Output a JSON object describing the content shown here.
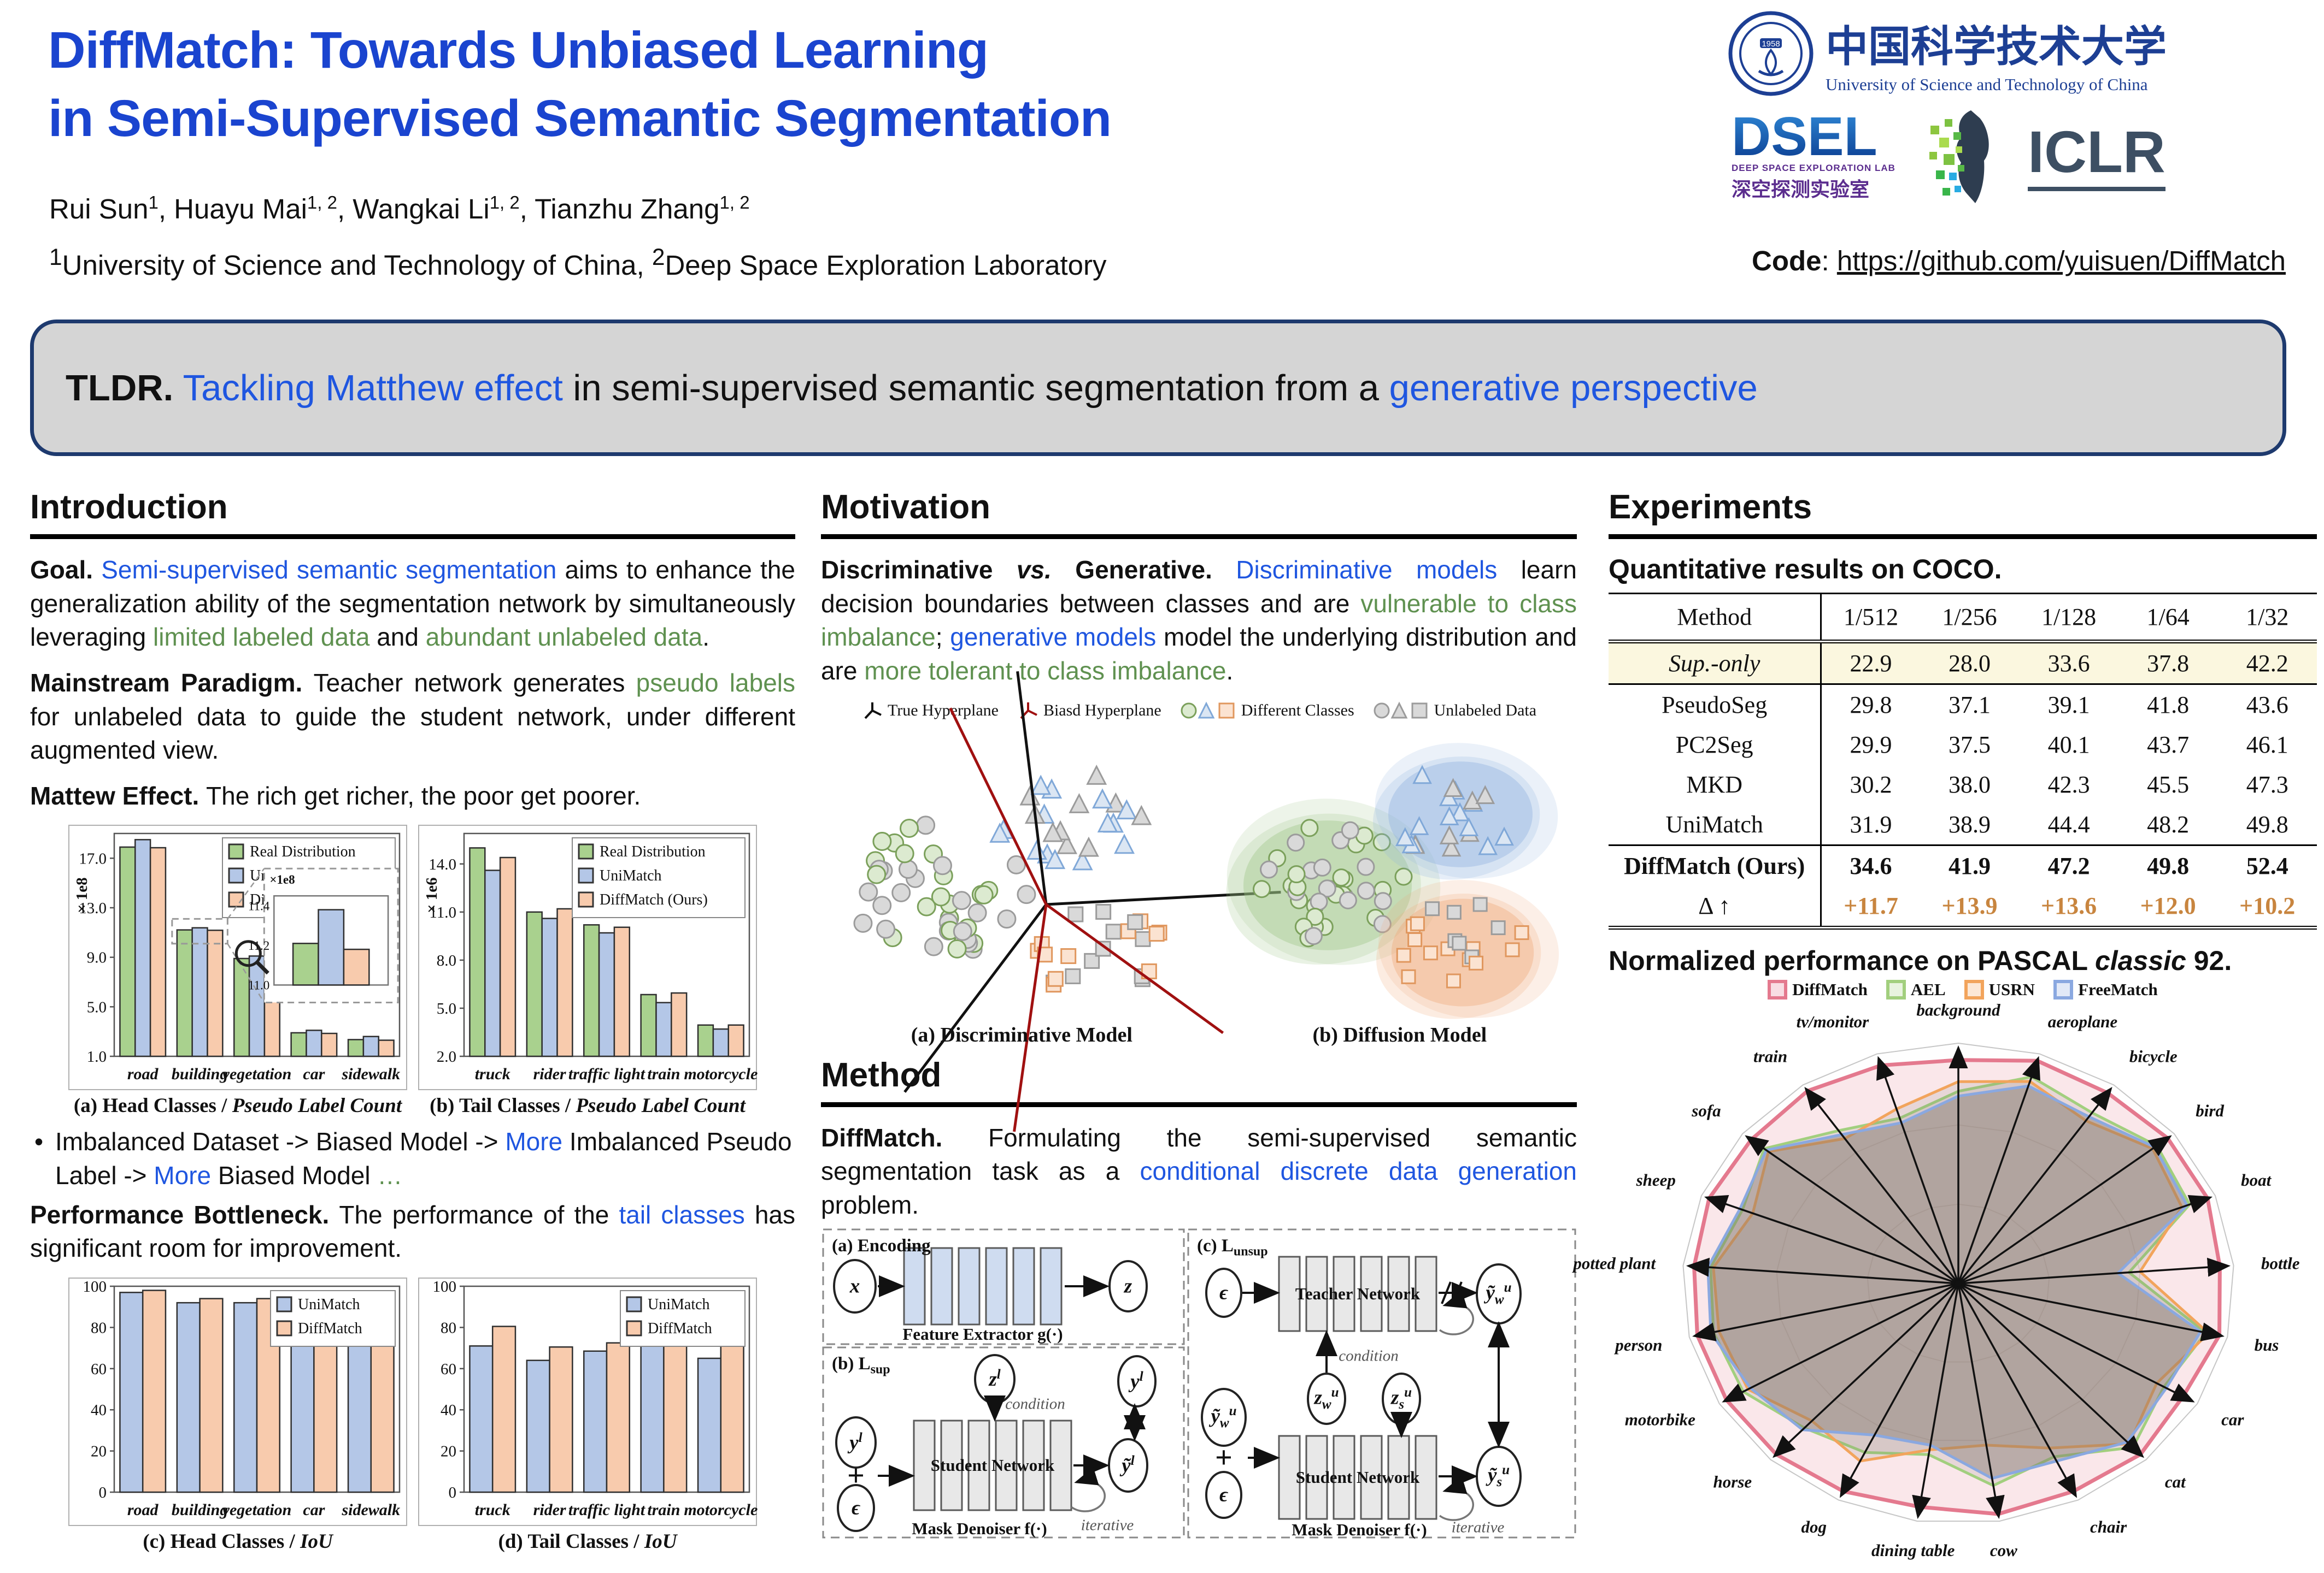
{
  "header": {
    "title_line1": "DiffMatch: Towards Unbiased Learning",
    "title_line2": "in Semi-Supervised Semantic Segmentation",
    "authors": "Rui Sun^{1}, Huayu Mai^{1, 2}, Wangkai Li^{1, 2}, Tianzhu Zhang^{1, 2}",
    "affiliations": "^{1}University of Science and Technology of China, ^{2}Deep Space Exploration Laboratory",
    "code_label": "Code",
    "code_url": "https://github.com/yuisuen/DiffMatch",
    "logos": {
      "ustc_cn": "中国科学技术大学",
      "ustc_en": "University of Science and Technology of China",
      "dsel": "DSEL",
      "dsel_sub": "DEEP SPACE EXPLORATION LAB",
      "dsel_cn": "深空探测实验室",
      "iclr": "ICLR"
    }
  },
  "tldr": {
    "segments": [
      {
        "t": "TLDR.",
        "b": 1
      },
      {
        "t": " Tackling Matthew effect",
        "c": "blue"
      },
      {
        "t": " in semi-supervised semantic segmentation from a "
      },
      {
        "t": "generative perspective",
        "c": "blue"
      }
    ]
  },
  "sections": {
    "intro": "Introduction",
    "motivation": "Motivation",
    "method": "Method",
    "experiments": "Experiments"
  },
  "intro": {
    "goal": [
      {
        "t": "Goal. ",
        "b": 1
      },
      {
        "t": "Semi-supervised semantic segmentation",
        "c": "blue"
      },
      {
        "t": " aims to enhance the generalization ability of the segmentation network by simultaneously leveraging "
      },
      {
        "t": "limited labeled data",
        "c": "green"
      },
      {
        "t": " and "
      },
      {
        "t": "abundant unlabeled data",
        "c": "green"
      },
      {
        "t": "."
      }
    ],
    "paradigm": [
      {
        "t": "Mainstream Paradigm. ",
        "b": 1
      },
      {
        "t": "Teacher network generates "
      },
      {
        "t": "pseudo labels",
        "c": "green"
      },
      {
        "t": " for unlabeled data to guide the student network, under different  augmented view."
      }
    ],
    "matthew": [
      {
        "t": "Mattew Effect. ",
        "b": 1
      },
      {
        "t": "The rich get richer, the poor get poorer."
      }
    ],
    "bullet": [
      {
        "t": "Imbalanced Dataset -> Biased Model -> "
      },
      {
        "t": "More",
        "c": "blue"
      },
      {
        "t": " Imbalanced Pseudo Label -> "
      },
      {
        "t": "More",
        "c": "blue"
      },
      {
        "t": " Biased Model "
      },
      {
        "t": "…",
        "c": "green"
      }
    ],
    "bottleneck": [
      {
        "t": "Performance Bottleneck. ",
        "b": 1
      },
      {
        "t": "The performance of the "
      },
      {
        "t": "tail classes",
        "c": "blue"
      },
      {
        "t": " has significant room for improvement."
      }
    ]
  },
  "motivation": {
    "paragraph": [
      {
        "t": "Discriminative ",
        "b": 1
      },
      {
        "t": "vs.",
        "b": 1,
        "i": 1
      },
      {
        "t": " Generative. ",
        "b": 1
      },
      {
        "t": "Discriminative models",
        "c": "blue"
      },
      {
        "t": " learn decision boundaries between classes and are "
      },
      {
        "t": "vulnerable to class imbalance",
        "c": "green"
      },
      {
        "t": "; "
      },
      {
        "t": "generative models",
        "c": "blue"
      },
      {
        "t": " model the underlying distribution and are "
      },
      {
        "t": "more tolerant to class imbalance",
        "c": "green"
      },
      {
        "t": "."
      }
    ]
  },
  "motiv_fig": {
    "legend": {
      "true_hp": "True Hyperplane",
      "biased_hp": "Biasd Hyperplane",
      "classes": "Different Classes",
      "unlabeled": "Unlabeled Data"
    },
    "captions": {
      "a": "(a) Discriminative Model",
      "b": "(b) Diffusion Model"
    }
  },
  "method": {
    "paragraph": [
      {
        "t": "DiffMatch. ",
        "b": 1
      },
      {
        "t": "Formulating the semi-supervised semantic segmentation task as a "
      },
      {
        "t": "conditional discrete data generation",
        "c": "blue"
      },
      {
        "t": " problem."
      }
    ]
  },
  "method_fig": {
    "labels": {
      "box_a": "(a) Encoding",
      "box_b": "(b) L_{sup}",
      "box_c": "(c) L_{unsup}",
      "x": "x",
      "z": "z",
      "zl": "z^{l}",
      "yl": "y^{l}",
      "ytl": "ỹ^{l}",
      "eps": "ϵ",
      "ywu": "ỹ_{w}^{u}",
      "zwu": "z_{w}^{u}",
      "zsu": "z_{s}^{u}",
      "ysu": "ỹ_{s}^{u}",
      "plus": "+",
      "feat": "Feature Extractor g(·)",
      "student": "Student Network",
      "teacher": "Teacher Network",
      "mask": "Mask Denoiser f(·)",
      "condition": "condition",
      "iterative": "iterative"
    }
  },
  "experiments": {
    "coco_title": "Quantitative results on COCO.",
    "coco_table": {
      "columns": [
        "Method",
        "1/512",
        "1/256",
        "1/128",
        "1/64",
        "1/32"
      ],
      "rows": [
        {
          "method": "Sup.-only",
          "italic": true,
          "highlight": true,
          "sep": true,
          "values": [
            "22.9",
            "28.0",
            "33.6",
            "37.8",
            "42.2"
          ]
        },
        {
          "method": "PseudoSeg",
          "values": [
            "29.8",
            "37.1",
            "39.1",
            "41.8",
            "43.6"
          ]
        },
        {
          "method": "PC2Seg",
          "values": [
            "29.9",
            "37.5",
            "40.1",
            "43.7",
            "46.1"
          ]
        },
        {
          "method": "MKD",
          "values": [
            "30.2",
            "38.0",
            "42.3",
            "45.5",
            "47.3"
          ]
        },
        {
          "method": "UniMatch",
          "sep": true,
          "values": [
            "31.9",
            "38.9",
            "44.4",
            "48.2",
            "49.8"
          ]
        },
        {
          "method": "DiffMatch (Ours)",
          "bold": true,
          "values": [
            "34.6",
            "41.9",
            "47.2",
            "49.8",
            "52.4"
          ]
        },
        {
          "method": "Δ ↑",
          "delta": true,
          "values": [
            "+11.7",
            "+13.9",
            "+13.6",
            "+12.0",
            "+10.2"
          ]
        }
      ]
    }
  },
  "chart_data": [
    {
      "id": "head-pseudo",
      "type": "bar",
      "caption": [
        {
          "t": "(a) Head Classes / ",
          "b": 1
        },
        {
          "t": "Pseudo Label Count",
          "b": 1,
          "i": 1
        }
      ],
      "ylabel": "× 1e8",
      "yticks": [
        "1.0",
        "5.0",
        "9.0",
        "13.0",
        "17.0"
      ],
      "ylim": [
        1.0,
        19.0
      ],
      "categories": [
        "road",
        "building",
        "vegetation",
        "car",
        "sidewalk"
      ],
      "series": [
        {
          "name": "Real Distribution",
          "color": "#a9d18e",
          "values": [
            17.9,
            11.21,
            8.9,
            2.9,
            2.35
          ]
        },
        {
          "name": "UniMacth",
          "color": "#b4c7e7",
          "values": [
            18.5,
            11.38,
            9.1,
            3.1,
            2.6
          ]
        },
        {
          "name": "DiffMatch (Ours)",
          "color": "#f8cbad",
          "values": [
            17.85,
            11.18,
            8.85,
            2.85,
            2.3
          ]
        }
      ],
      "inset": {
        "label": "×1e8",
        "yticks": [
          "11.0",
          "11.2",
          "11.4"
        ],
        "ylim": [
          11.0,
          11.45
        ],
        "category_index": 1
      }
    },
    {
      "id": "tail-pseudo",
      "type": "bar",
      "caption": [
        {
          "t": "(b) Tail Classes / ",
          "b": 1
        },
        {
          "t": "Pseudo Label Count",
          "b": 1,
          "i": 1
        }
      ],
      "ylabel": "× 1e6",
      "yticks": [
        "2.0",
        "5.0",
        "8.0",
        "11.0",
        "14.0"
      ],
      "ylim": [
        2.0,
        15.9
      ],
      "categories": [
        "truck",
        "rider",
        "traffic light",
        "train",
        "motorcycle"
      ],
      "series": [
        {
          "name": "Real Distribution",
          "color": "#a9d18e",
          "values": [
            15.0,
            11.0,
            10.2,
            5.85,
            3.95
          ]
        },
        {
          "name": "UniMatch",
          "color": "#b4c7e7",
          "values": [
            13.6,
            10.6,
            9.7,
            5.35,
            3.7
          ]
        },
        {
          "name": "DiffMatch (Ours)",
          "color": "#f8cbad",
          "values": [
            14.4,
            11.2,
            10.05,
            5.95,
            3.95
          ]
        }
      ]
    },
    {
      "id": "head-iou",
      "type": "bar",
      "caption": [
        {
          "t": "(c) Head Classes / ",
          "b": 1
        },
        {
          "t": "IoU",
          "b": 1,
          "i": 1
        }
      ],
      "ylabel": "",
      "yticks": [
        "0",
        "20",
        "40",
        "60",
        "80",
        "100"
      ],
      "ylim": [
        0,
        100
      ],
      "categories": [
        "road",
        "building",
        "vegetation",
        "car",
        "sidewalk"
      ],
      "series": [
        {
          "name": "UniMatch",
          "color": "#b4c7e7",
          "values": [
            97,
            92,
            92,
            94.5,
            83
          ]
        },
        {
          "name": "DiffMatch",
          "color": "#f8cbad",
          "values": [
            98,
            94,
            94,
            96,
            85.5
          ]
        }
      ]
    },
    {
      "id": "tail-iou",
      "type": "bar",
      "caption": [
        {
          "t": "(d) Tail Classes / ",
          "b": 1
        },
        {
          "t": "IoU",
          "b": 1,
          "i": 1
        }
      ],
      "ylabel": "",
      "yticks": [
        "0",
        "20",
        "40",
        "60",
        "80",
        "100"
      ],
      "ylim": [
        0,
        100
      ],
      "categories": [
        "truck",
        "rider",
        "traffic light",
        "train",
        "motorcycle"
      ],
      "series": [
        {
          "name": "UniMatch",
          "color": "#b4c7e7",
          "values": [
            71,
            64,
            68.5,
            73,
            65
          ]
        },
        {
          "name": "DiffMatch",
          "color": "#f8cbad",
          "values": [
            80.5,
            70.5,
            72.5,
            89,
            74
          ]
        }
      ]
    },
    {
      "id": "pascal-radar",
      "type": "radar",
      "title": [
        {
          "t": "Normalized performance on PASCAL ",
          "b": 1
        },
        {
          "t": "classic",
          "b": 1,
          "i": 1
        },
        {
          "t": " 92.",
          "b": 1
        }
      ],
      "categories": [
        "background",
        "aeroplane",
        "bicycle",
        "bird",
        "boat",
        "bottle",
        "bus",
        "car",
        "cat",
        "chair",
        "cow",
        "dining table",
        "dog",
        "horse",
        "motorbike",
        "person",
        "potted plant",
        "sheep",
        "sofa",
        "train",
        "tv/monitor"
      ],
      "series": [
        {
          "name": "DiffMatch",
          "color": "#e4798e",
          "values": [
            0.93,
            0.97,
            0.96,
            0.97,
            0.97,
            0.95,
            0.97,
            0.94,
            0.97,
            0.96,
            0.97,
            0.94,
            0.96,
            0.97,
            0.97,
            0.97,
            0.96,
            0.97,
            0.96,
            0.97,
            0.95
          ]
        },
        {
          "name": "AEL",
          "color": "#a2cf7e",
          "values": [
            0.8,
            0.9,
            0.86,
            0.92,
            0.9,
            0.62,
            0.92,
            0.86,
            0.93,
            0.8,
            0.85,
            0.72,
            0.78,
            0.82,
            0.9,
            0.91,
            0.9,
            0.84,
            0.9,
            0.77,
            0.72
          ]
        },
        {
          "name": "USRN",
          "color": "#f2a45c",
          "values": [
            0.84,
            0.88,
            0.82,
            0.9,
            0.87,
            0.66,
            0.93,
            0.83,
            0.91,
            0.76,
            0.68,
            0.7,
            0.82,
            0.78,
            0.88,
            0.89,
            0.89,
            0.8,
            0.88,
            0.73,
            0.76
          ]
        },
        {
          "name": "FreeMatch",
          "color": "#8aa8e0",
          "values": [
            0.78,
            0.86,
            0.84,
            0.91,
            0.89,
            0.58,
            0.9,
            0.87,
            0.9,
            0.82,
            0.82,
            0.68,
            0.7,
            0.83,
            0.87,
            0.92,
            0.91,
            0.85,
            0.89,
            0.75,
            0.7
          ]
        }
      ]
    }
  ]
}
